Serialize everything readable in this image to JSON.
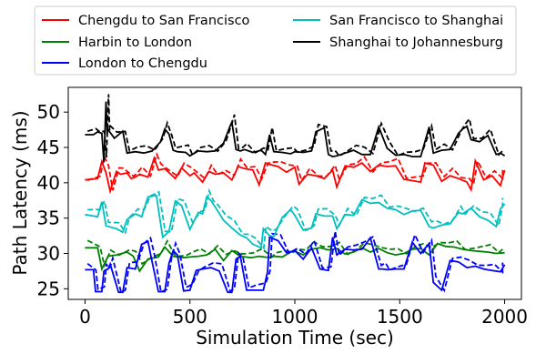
{
  "chart_data": {
    "type": "line",
    "title": "",
    "xlabel": "Simulation Time (sec)",
    "ylabel": "Path Latency (ms)",
    "xlim": [
      -80,
      2080
    ],
    "ylim": [
      23.5,
      53.5
    ],
    "x_ticks": [
      0,
      500,
      1000,
      1500,
      2000
    ],
    "y_ticks": [
      25,
      30,
      35,
      40,
      45,
      50
    ],
    "legend_position": "top (above plot), two columns",
    "line_styles": {
      "solid": "",
      "dashed": "dashed companion of each series"
    },
    "series": [
      {
        "name": "Chengdu to San Francisco",
        "color": "#ff0000",
        "x": [
          0,
          60,
          80,
          100,
          120,
          150,
          170,
          200,
          220,
          240,
          260,
          300,
          330,
          350,
          380,
          430,
          460,
          500,
          520,
          560,
          590,
          620,
          660,
          700,
          730,
          760,
          800,
          830,
          860,
          880,
          920,
          960,
          1000,
          1020,
          1060,
          1100,
          1140,
          1180,
          1200,
          1240,
          1280,
          1320,
          1360,
          1400,
          1440,
          1480,
          1520,
          1560,
          1600,
          1620,
          1660,
          1700,
          1740,
          1780,
          1820,
          1840,
          1860,
          1900,
          1940,
          1980,
          2000
        ],
        "values": [
          40.4,
          40.6,
          43.0,
          41.4,
          38.8,
          41.6,
          41.2,
          41.4,
          40.6,
          40.8,
          41.2,
          40.8,
          43.5,
          41.8,
          42.0,
          40.6,
          42.1,
          41.0,
          41.4,
          40.1,
          41.6,
          41.2,
          41.4,
          40.4,
          42.3,
          42.0,
          41.8,
          39.7,
          42.8,
          42.6,
          42.3,
          41.5,
          42.2,
          39.8,
          41.2,
          41.0,
          40.6,
          41.8,
          39.4,
          42.4,
          42.2,
          42.8,
          41.6,
          42.5,
          42.3,
          42.4,
          40.5,
          40.3,
          40.1,
          42.8,
          42.5,
          40.2,
          41.0,
          40.6,
          40.1,
          39.0,
          43.1,
          40.4,
          41.0,
          39.6,
          41.8
        ]
      },
      {
        "name": "Harbin to London",
        "color": "#008000",
        "x": [
          0,
          60,
          80,
          110,
          150,
          200,
          230,
          260,
          300,
          350,
          380,
          420,
          470,
          500,
          540,
          580,
          620,
          660,
          700,
          740,
          790,
          830,
          880,
          900,
          940,
          980,
          1000,
          1040,
          1080,
          1120,
          1160,
          1200,
          1240,
          1280,
          1320,
          1360,
          1400,
          1440,
          1480,
          1520,
          1560,
          1600,
          1640,
          1680,
          1720,
          1760,
          1800,
          1840,
          1880,
          1920,
          1960,
          2000
        ],
        "values": [
          30.8,
          30.8,
          27.8,
          29.6,
          29.8,
          30.2,
          29.6,
          27.5,
          29.2,
          29.5,
          30.9,
          29.6,
          29.4,
          29.5,
          29.6,
          29.8,
          30.6,
          29.0,
          30.4,
          29.6,
          29.4,
          29.6,
          29.4,
          29.6,
          29.5,
          30.2,
          30.3,
          29.8,
          30.6,
          30.8,
          30.5,
          30.7,
          29.9,
          30.2,
          30.8,
          30.2,
          30.7,
          30.1,
          29.8,
          30.0,
          30.6,
          30.7,
          29.8,
          31.4,
          31.0,
          30.9,
          30.6,
          30.4,
          30.3,
          30.2,
          30.0,
          30.1
        ]
      },
      {
        "name": "London to Chengdu",
        "color": "#0000ff",
        "x": [
          0,
          40,
          50,
          80,
          90,
          100,
          110,
          120,
          160,
          180,
          200,
          240,
          270,
          300,
          320,
          350,
          380,
          400,
          420,
          440,
          470,
          500,
          530,
          560,
          600,
          640,
          680,
          700,
          720,
          740,
          770,
          800,
          850,
          870,
          880,
          920,
          960,
          1000,
          1040,
          1080,
          1120,
          1160,
          1180,
          1200,
          1240,
          1280,
          1320,
          1360,
          1400,
          1420,
          1440,
          1480,
          1520,
          1560,
          1600,
          1640,
          1660,
          1700,
          1740,
          1780,
          1820,
          1860,
          1900,
          1940,
          1980,
          2000
        ],
        "values": [
          27.7,
          27.7,
          24.6,
          24.6,
          27.5,
          27.7,
          27.8,
          28.5,
          24.5,
          24.5,
          28.0,
          27.8,
          31.3,
          31.7,
          28.8,
          24.6,
          24.6,
          28.6,
          30.4,
          29.8,
          24.7,
          24.8,
          27.6,
          27.8,
          28.0,
          27.5,
          24.5,
          24.5,
          29.2,
          29.6,
          24.8,
          24.8,
          24.8,
          27.4,
          32.3,
          31.8,
          30.1,
          30.4,
          29.2,
          30.8,
          27.8,
          27.6,
          32.3,
          29.8,
          30.6,
          30.5,
          30.6,
          32.2,
          27.8,
          27.8,
          27.7,
          27.8,
          27.8,
          31.6,
          30.0,
          31.4,
          25.9,
          24.8,
          29.0,
          28.8,
          28.0,
          28.2,
          27.8,
          27.6,
          27.4,
          28.4
        ]
      },
      {
        "name": "San Francisco to Shanghai",
        "color": "#00bfbf",
        "x": [
          0,
          60,
          80,
          100,
          150,
          180,
          200,
          240,
          270,
          300,
          340,
          370,
          400,
          430,
          460,
          500,
          540,
          560,
          580,
          600,
          620,
          660,
          700,
          740,
          770,
          800,
          840,
          850,
          880,
          900,
          940,
          980,
          1000,
          1040,
          1080,
          1100,
          1140,
          1180,
          1200,
          1240,
          1280,
          1320,
          1360,
          1400,
          1440,
          1480,
          1520,
          1560,
          1600,
          1640,
          1660,
          1700,
          1740,
          1780,
          1800,
          1840,
          1880,
          1920,
          1960,
          1980,
          2000
        ],
        "values": [
          35.5,
          35.2,
          37.3,
          33.9,
          33.5,
          33.0,
          34.8,
          35.6,
          35.2,
          38.0,
          38.2,
          32.3,
          33.1,
          37.4,
          36.8,
          33.4,
          35.8,
          35.6,
          38.0,
          37.5,
          36.6,
          34.7,
          33.6,
          32.6,
          32.2,
          31.3,
          30.8,
          33.5,
          32.5,
          32.4,
          35.1,
          36.2,
          35.4,
          33.3,
          33.6,
          35.6,
          35.3,
          35.3,
          33.5,
          35.5,
          35.4,
          37.6,
          37.1,
          37.2,
          36.4,
          36.2,
          35.5,
          36.0,
          36.1,
          33.8,
          33.6,
          34.0,
          34.2,
          35.8,
          35.6,
          36.4,
          35.2,
          34.7,
          33.8,
          36.3,
          37.0
        ]
      },
      {
        "name": "Shanghai to Johannesburg",
        "color": "#000000",
        "x": [
          0,
          40,
          60,
          80,
          90,
          100,
          105,
          110,
          140,
          180,
          200,
          240,
          280,
          320,
          360,
          380,
          400,
          420,
          440,
          480,
          500,
          540,
          580,
          620,
          660,
          690,
          700,
          720,
          740,
          760,
          800,
          840,
          860,
          880,
          900,
          940,
          980,
          1000,
          1040,
          1080,
          1100,
          1140,
          1160,
          1180,
          1200,
          1240,
          1280,
          1320,
          1360,
          1400,
          1440,
          1480,
          1520,
          1560,
          1600,
          1640,
          1660,
          1700,
          1740,
          1780,
          1800,
          1820,
          1840,
          1880,
          1920,
          1960,
          1980,
          2000
        ],
        "values": [
          46.8,
          46.8,
          47.2,
          47.0,
          42.9,
          51.5,
          47.3,
          47.5,
          46.3,
          47.3,
          44.2,
          44.4,
          44.2,
          44.5,
          45.8,
          47.6,
          46.9,
          44.6,
          44.4,
          44.3,
          43.8,
          44.5,
          44.4,
          44.5,
          45.6,
          47.9,
          48.6,
          44.7,
          44.5,
          44.7,
          44.3,
          44.6,
          44.0,
          46.8,
          44.4,
          44.3,
          44.1,
          44.4,
          44.3,
          44.5,
          47.2,
          47.8,
          44.0,
          43.7,
          43.8,
          44.2,
          44.6,
          44.0,
          44.0,
          47.9,
          44.9,
          43.9,
          44.0,
          43.7,
          43.7,
          47.9,
          44.2,
          44.6,
          44.7,
          47.0,
          47.6,
          48.0,
          46.1,
          45.8,
          46.7,
          44.0,
          44.2,
          43.8
        ]
      }
    ]
  }
}
